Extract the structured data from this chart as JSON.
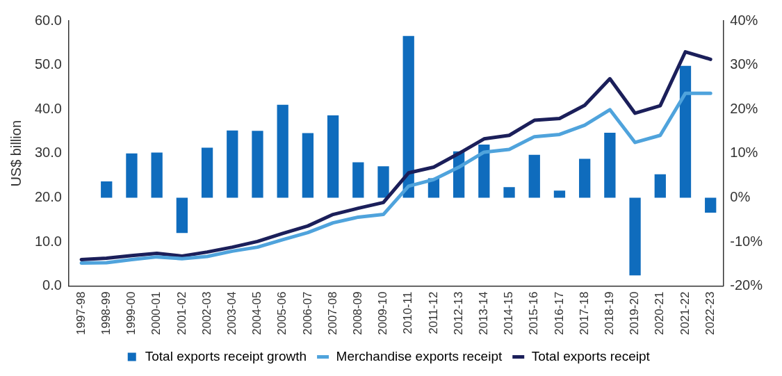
{
  "chart_data": {
    "type": "bar",
    "ylabel": "US$ billion",
    "categories": [
      "1997-98",
      "1998-99",
      "1999-00",
      "2000-01",
      "2001-02",
      "2002-03",
      "2003-04",
      "2004-05",
      "2005-06",
      "2006-07",
      "2007-08",
      "2008-09",
      "2009-10",
      "2010-11",
      "2011-12",
      "2012-13",
      "2013-14",
      "2014-15",
      "2015-16",
      "2016-17",
      "2017-18",
      "2018-19",
      "2019-20",
      "2020-21",
      "2021-22",
      "2022-23"
    ],
    "series": [
      {
        "name": "Total exports receipt growth",
        "axis": "y2",
        "color": "#0f6cbd",
        "values": [
          null,
          3.7,
          10.0,
          10.2,
          -8.0,
          11.3,
          15.2,
          15.1,
          21.0,
          14.6,
          18.6,
          8.0,
          7.1,
          36.6,
          4.4,
          10.5,
          12.0,
          2.4,
          9.7,
          1.6,
          8.8,
          14.7,
          -17.6,
          5.3,
          29.8,
          -3.4
        ]
      },
      {
        "name": "Merchandise exports receipt",
        "type": "line",
        "color": "#4fa3dc",
        "values": [
          5.2,
          5.3,
          6.0,
          6.6,
          6.2,
          6.7,
          7.9,
          8.8,
          10.5,
          12.1,
          14.3,
          15.6,
          16.2,
          22.6,
          24.1,
          26.9,
          30.3,
          30.9,
          33.8,
          34.3,
          36.4,
          39.9,
          32.5,
          34.1,
          43.6,
          43.6
        ]
      },
      {
        "name": "Total exports receipt",
        "type": "line",
        "color": "#1b1f5a",
        "values": [
          6.0,
          6.3,
          6.9,
          7.4,
          6.8,
          7.7,
          8.8,
          10.1,
          11.9,
          13.6,
          16.2,
          17.6,
          18.9,
          25.6,
          26.9,
          30.0,
          33.3,
          34.1,
          37.5,
          37.9,
          40.9,
          46.9,
          39.1,
          40.8,
          53.0,
          51.3
        ]
      }
    ],
    "ylim": [
      0,
      60
    ],
    "yticks": [
      {
        "value": 0,
        "label": "0.0"
      },
      {
        "value": 10,
        "label": "10.0"
      },
      {
        "value": 20,
        "label": "20.0"
      },
      {
        "value": 30,
        "label": "30.0"
      },
      {
        "value": 40,
        "label": "40.0"
      },
      {
        "value": 50,
        "label": "50.0"
      },
      {
        "value": 60,
        "label": "60.0"
      }
    ],
    "y2lim": [
      -20,
      40
    ],
    "y2ticks": [
      {
        "value": -20,
        "label": "-20%"
      },
      {
        "value": -10,
        "label": "-10%"
      },
      {
        "value": 0,
        "label": "0%"
      },
      {
        "value": 10,
        "label": "10%"
      },
      {
        "value": 20,
        "label": "20%"
      },
      {
        "value": 30,
        "label": "30%"
      },
      {
        "value": 40,
        "label": "40%"
      }
    ],
    "grid": false,
    "legend": "bottom",
    "marker": "none",
    "line_style": "solid"
  }
}
